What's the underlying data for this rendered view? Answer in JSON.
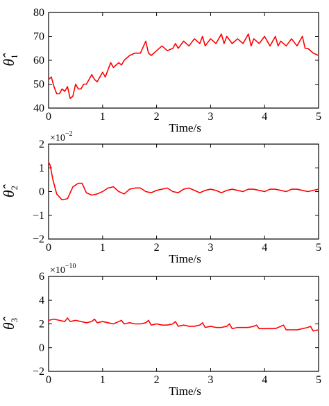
{
  "chart_data": [
    {
      "type": "line",
      "xlabel": "Time/s",
      "ylabel": {
        "symbol": "θ̂",
        "subscript": "1"
      },
      "multiplier": null,
      "xlim": [
        0,
        5
      ],
      "ylim": [
        40,
        80
      ],
      "xticks": [
        "0",
        "1",
        "2",
        "3",
        "4",
        "5"
      ],
      "yticks": [
        "40",
        "50",
        "60",
        "70",
        "80"
      ],
      "line_color": "#ff0000",
      "series": [
        {
          "x": [
            0,
            0.05,
            0.1,
            0.15,
            0.2,
            0.25,
            0.3,
            0.35,
            0.4,
            0.45,
            0.5,
            0.55,
            0.6,
            0.65,
            0.7,
            0.75,
            0.8,
            0.85,
            0.9,
            0.95,
            1.0,
            1.05,
            1.1,
            1.15,
            1.2,
            1.25,
            1.3,
            1.35,
            1.4,
            1.5,
            1.6,
            1.7,
            1.8,
            1.85,
            1.9,
            2.0,
            2.1,
            2.2,
            2.3,
            2.35,
            2.4,
            2.5,
            2.6,
            2.7,
            2.8,
            2.85,
            2.9,
            3.0,
            3.1,
            3.2,
            3.25,
            3.3,
            3.4,
            3.5,
            3.6,
            3.7,
            3.75,
            3.8,
            3.9,
            4.0,
            4.1,
            4.2,
            4.25,
            4.3,
            4.4,
            4.5,
            4.6,
            4.7,
            4.75,
            4.8,
            4.9,
            5.0
          ],
          "y": [
            52,
            53,
            49,
            46,
            46,
            48,
            47,
            49,
            44,
            45,
            50,
            48,
            48,
            50,
            50,
            52,
            54,
            52,
            51,
            53,
            55,
            53,
            56,
            59,
            57,
            58,
            59,
            58,
            60,
            62,
            63,
            63,
            68,
            63,
            62,
            64,
            66,
            64,
            65,
            67,
            65,
            68,
            66,
            69,
            67,
            70,
            66,
            69,
            67,
            71,
            67,
            70,
            67,
            69,
            67,
            71,
            66,
            69,
            67,
            70,
            66,
            70,
            66,
            68,
            66,
            69,
            66,
            70,
            65,
            65,
            63,
            62
          ]
        }
      ]
    },
    {
      "type": "line",
      "xlabel": "Time/s",
      "ylabel": {
        "symbol": "θ̂",
        "subscript": "2"
      },
      "multiplier": {
        "base": "×10",
        "exp": "−2"
      },
      "xlim": [
        0,
        5
      ],
      "ylim": [
        -2,
        2
      ],
      "xticks": [
        "0",
        "1",
        "2",
        "3",
        "4",
        "5"
      ],
      "yticks": [
        "−2",
        "−1",
        "0",
        "1",
        "2"
      ],
      "line_color": "#ff0000",
      "series": [
        {
          "x": [
            0,
            0.03,
            0.08,
            0.15,
            0.25,
            0.35,
            0.45,
            0.55,
            0.62,
            0.7,
            0.8,
            0.9,
            1.0,
            1.1,
            1.2,
            1.3,
            1.4,
            1.5,
            1.6,
            1.7,
            1.8,
            1.9,
            2.0,
            2.1,
            2.2,
            2.3,
            2.4,
            2.5,
            2.6,
            2.7,
            2.8,
            2.9,
            3.0,
            3.1,
            3.2,
            3.3,
            3.4,
            3.5,
            3.6,
            3.7,
            3.8,
            3.9,
            4.0,
            4.1,
            4.2,
            4.3,
            4.4,
            4.5,
            4.6,
            4.7,
            4.8,
            4.9,
            5.0
          ],
          "y": [
            1.25,
            1.1,
            0.5,
            -0.1,
            -0.35,
            -0.3,
            0.2,
            0.35,
            0.35,
            -0.05,
            -0.15,
            -0.1,
            0.0,
            0.15,
            0.2,
            0.0,
            -0.1,
            0.1,
            0.15,
            0.15,
            0.0,
            -0.05,
            0.05,
            0.1,
            0.15,
            0.0,
            -0.05,
            0.1,
            0.15,
            0.05,
            -0.05,
            0.05,
            0.1,
            0.05,
            -0.05,
            0.05,
            0.1,
            0.05,
            0.0,
            0.1,
            0.1,
            0.05,
            0.0,
            0.1,
            0.1,
            0.05,
            0.0,
            0.1,
            0.1,
            0.05,
            0.0,
            0.05,
            0.1
          ]
        }
      ]
    },
    {
      "type": "line",
      "xlabel": "Time/s",
      "ylabel": {
        "symbol": "θ̂",
        "subscript": "3"
      },
      "multiplier": {
        "base": "×10",
        "exp": "−10"
      },
      "xlim": [
        0,
        5
      ],
      "ylim": [
        -2,
        6
      ],
      "xticks": [
        "0",
        "1",
        "2",
        "3",
        "4",
        "5"
      ],
      "yticks": [
        "−2",
        "0",
        "2",
        "4",
        "6"
      ],
      "line_color": "#ff0000",
      "series": [
        {
          "x": [
            0,
            0.1,
            0.2,
            0.3,
            0.35,
            0.4,
            0.5,
            0.6,
            0.7,
            0.8,
            0.85,
            0.9,
            1.0,
            1.1,
            1.2,
            1.3,
            1.35,
            1.4,
            1.5,
            1.6,
            1.7,
            1.8,
            1.85,
            1.9,
            2.0,
            2.1,
            2.2,
            2.3,
            2.35,
            2.4,
            2.5,
            2.6,
            2.7,
            2.8,
            2.85,
            2.9,
            3.0,
            3.1,
            3.2,
            3.3,
            3.35,
            3.4,
            3.5,
            3.6,
            3.7,
            3.8,
            3.85,
            3.9,
            4.0,
            4.1,
            4.2,
            4.3,
            4.35,
            4.4,
            4.5,
            4.6,
            4.7,
            4.8,
            4.85,
            4.9,
            5.0
          ],
          "y": [
            2.3,
            2.4,
            2.3,
            2.2,
            2.5,
            2.2,
            2.3,
            2.2,
            2.1,
            2.2,
            2.4,
            2.1,
            2.2,
            2.1,
            2.0,
            2.2,
            2.3,
            2.0,
            2.1,
            2.0,
            2.0,
            2.1,
            2.3,
            1.9,
            2.0,
            1.9,
            1.9,
            2.0,
            2.2,
            1.8,
            1.9,
            1.8,
            1.8,
            1.9,
            2.1,
            1.7,
            1.8,
            1.7,
            1.7,
            1.8,
            2.0,
            1.6,
            1.7,
            1.7,
            1.7,
            1.8,
            1.9,
            1.6,
            1.6,
            1.6,
            1.6,
            1.8,
            1.9,
            1.5,
            1.5,
            1.5,
            1.6,
            1.7,
            1.8,
            1.4,
            1.5
          ]
        }
      ]
    }
  ]
}
